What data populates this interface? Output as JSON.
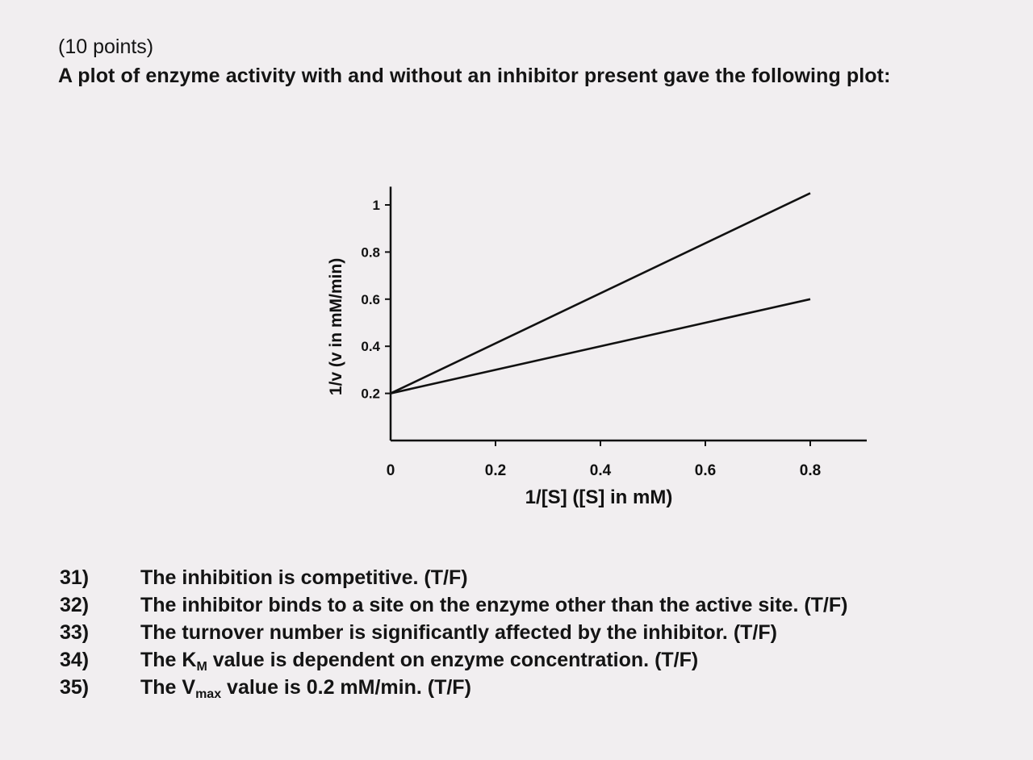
{
  "header": {
    "points": "(10 points)",
    "prompt": "A plot of enzyme activity with and without an inhibitor present gave the following plot:"
  },
  "chart_data": {
    "type": "line",
    "xlabel": "1/[S] ([S] in mM)",
    "ylabel": "1/v (v in mM/min)",
    "x_ticks": [
      0,
      0.2,
      0.4,
      0.6,
      0.8
    ],
    "x_tick_labels": [
      "0",
      "0.2",
      "0.4",
      "0.6",
      "0.8"
    ],
    "y_ticks": [
      0.2,
      0.4,
      0.6,
      0.8,
      1
    ],
    "y_tick_labels": [
      "0.2",
      "0.4",
      "0.6",
      "0.8",
      "1"
    ],
    "xlim": [
      0,
      0.9
    ],
    "ylim": [
      0,
      1.05
    ],
    "grid": false,
    "series": [
      {
        "x": [
          0,
          0.8
        ],
        "y": [
          0.2,
          1.05
        ]
      },
      {
        "x": [
          0,
          0.8
        ],
        "y": [
          0.2,
          0.6
        ]
      }
    ]
  },
  "questions": [
    {
      "number": "31)",
      "text": "The inhibition is competitive. (T/F)"
    },
    {
      "number": "32)",
      "text": "The inhibitor binds to a site on the enzyme other than the active site. (T/F)"
    },
    {
      "number": "33)",
      "text": "The turnover number is significantly affected by the inhibitor. (T/F)"
    },
    {
      "number": "34)",
      "text_before": "The K",
      "subscript": "M",
      "text_after": " value is dependent on enzyme concentration. (T/F)"
    },
    {
      "number": "35)",
      "text_before": "The V",
      "subscript": "max",
      "text_after": " value is 0.2 mM/min. (T/F)"
    }
  ]
}
